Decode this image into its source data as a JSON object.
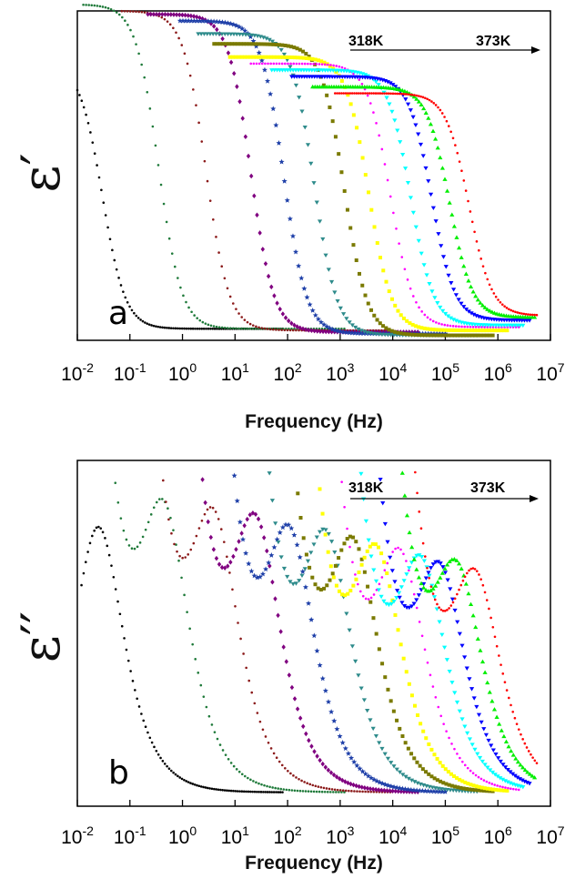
{
  "temperature_range": {
    "start": "318K",
    "end": "373K"
  },
  "series_colors": [
    "#000000",
    "#1f7a3a",
    "#8b1a1a",
    "#800080",
    "#1e3fa8",
    "#2e8b8b",
    "#7a7a00",
    "#ffff00",
    "#ff00ff",
    "#00ffff",
    "#0000ff",
    "#00ee00",
    "#ff0000"
  ],
  "chart_data": [
    {
      "type": "scatter",
      "panel_label": "a",
      "ylabel": "ε′",
      "xlabel": "Frequency (Hz)",
      "x_scale": "log",
      "xlim": [
        0.01,
        10000000
      ],
      "x_ticks": [
        0.01,
        0.1,
        1,
        10,
        100,
        1000,
        10000,
        100000,
        1000000,
        10000000
      ],
      "x_tick_bases": [
        "10",
        "10",
        "10",
        "10",
        "10",
        "10",
        "10",
        "10",
        "10",
        "10"
      ],
      "x_tick_exponents": [
        "-2",
        "-1",
        "0",
        "1",
        "2",
        "3",
        "4",
        "5",
        "6",
        "7"
      ],
      "y_ticks_shown": false,
      "ylim": [
        0,
        1
      ],
      "series": [
        {
          "color": "#000000",
          "marker": "dot",
          "fmin": 0.01,
          "fmax": 80,
          "fc": 0.03,
          "eps_s": 0.84,
          "eps_inf": 0.035
        },
        {
          "color": "#1f7a3a",
          "marker": "dot",
          "fmin": 0.013,
          "fmax": 1200,
          "fc": 0.35,
          "eps_s": 1.02,
          "eps_inf": 0.035
        },
        {
          "color": "#8b1a1a",
          "marker": "dot",
          "fmin": 0.07,
          "fmax": 9000,
          "fc": 2.8,
          "eps_s": 1.0,
          "eps_inf": 0.03
        },
        {
          "color": "#800080",
          "marker": "diamond",
          "fmin": 0.22,
          "fmax": 30000,
          "fc": 20,
          "eps_s": 0.99,
          "eps_inf": 0.025
        },
        {
          "color": "#1e3fa8",
          "marker": "star",
          "fmin": 0.9,
          "fmax": 100000,
          "fc": 85,
          "eps_s": 0.97,
          "eps_inf": 0.02
        },
        {
          "color": "#2e8b8b",
          "marker": "tri-down",
          "fmin": 2,
          "fmax": 400000,
          "fc": 320,
          "eps_s": 0.93,
          "eps_inf": 0.015
        },
        {
          "color": "#7a7a00",
          "marker": "square",
          "fmin": 4,
          "fmax": 800000,
          "fc": 1200,
          "eps_s": 0.9,
          "eps_inf": 0.015
        },
        {
          "color": "#ffff00",
          "marker": "square",
          "fmin": 8,
          "fmax": 1500000,
          "fc": 3500,
          "eps_s": 0.86,
          "eps_inf": 0.03
        },
        {
          "color": "#ff00ff",
          "marker": "dot",
          "fmin": 20,
          "fmax": 2500000,
          "fc": 9000,
          "eps_s": 0.84,
          "eps_inf": 0.04
        },
        {
          "color": "#00ffff",
          "marker": "tri-down",
          "fmin": 50,
          "fmax": 3000000,
          "fc": 22000,
          "eps_s": 0.82,
          "eps_inf": 0.045
        },
        {
          "color": "#0000ff",
          "marker": "tri-down",
          "fmin": 120,
          "fmax": 4000000,
          "fc": 55000,
          "eps_s": 0.8,
          "eps_inf": 0.06
        },
        {
          "color": "#00ee00",
          "marker": "tri-up",
          "fmin": 300,
          "fmax": 5000000,
          "fc": 120000,
          "eps_s": 0.77,
          "eps_inf": 0.07
        },
        {
          "color": "#ff0000",
          "marker": "dot",
          "fmin": 800,
          "fmax": 5500000,
          "fc": 280000,
          "eps_s": 0.75,
          "eps_inf": 0.075
        }
      ]
    },
    {
      "type": "scatter",
      "panel_label": "b",
      "ylabel": "ε′′",
      "xlabel": "Frequency (Hz)",
      "x_scale": "log",
      "xlim": [
        0.01,
        10000000
      ],
      "x_ticks": [
        0.01,
        0.1,
        1,
        10,
        100,
        1000,
        10000,
        100000,
        1000000,
        10000000
      ],
      "x_tick_bases": [
        "10",
        "10",
        "10",
        "10",
        "10",
        "10",
        "10",
        "10",
        "10",
        "10"
      ],
      "x_tick_exponents": [
        "-2",
        "-1",
        "0",
        "1",
        "2",
        "3",
        "4",
        "5",
        "6",
        "7"
      ],
      "y_ticks_shown": false,
      "ylim": [
        0,
        1
      ],
      "series": [
        {
          "color": "#000000",
          "marker": "dot",
          "fmin": 0.012,
          "fmax": 80,
          "fp": 0.025,
          "peak": 0.8,
          "low_amp": 0.0,
          "slope": 0
        },
        {
          "color": "#1f7a3a",
          "marker": "dot",
          "fmin": 0.014,
          "fmax": 1200,
          "fp": 0.45,
          "peak": 0.78,
          "low_amp": 1.0,
          "slope": 0.95
        },
        {
          "color": "#8b1a1a",
          "marker": "dot",
          "fmin": 0.1,
          "fmax": 9000,
          "fp": 4,
          "peak": 0.76,
          "low_amp": 0.95,
          "slope": 0.95
        },
        {
          "color": "#800080",
          "marker": "diamond",
          "fmin": 0.3,
          "fmax": 30000,
          "fp": 25,
          "peak": 0.75,
          "low_amp": 0.88,
          "slope": 0.95
        },
        {
          "color": "#1e3fa8",
          "marker": "star",
          "fmin": 0.8,
          "fmax": 100000,
          "fp": 110,
          "peak": 0.72,
          "low_amp": 0.84,
          "slope": 0.95
        },
        {
          "color": "#2e8b8b",
          "marker": "tri-down",
          "fmin": 2,
          "fmax": 400000,
          "fp": 550,
          "peak": 0.71,
          "low_amp": 0.8,
          "slope": 0.95
        },
        {
          "color": "#7a7a00",
          "marker": "square",
          "fmin": 5,
          "fmax": 800000,
          "fp": 1800,
          "peak": 0.69,
          "low_amp": 0.78,
          "slope": 0.95
        },
        {
          "color": "#ffff00",
          "marker": "square",
          "fmin": 15,
          "fmax": 1500000,
          "fp": 5000,
          "peak": 0.67,
          "low_amp": 0.76,
          "slope": 0.95
        },
        {
          "color": "#ff00ff",
          "marker": "dot",
          "fmin": 40,
          "fmax": 2500000,
          "fp": 14000,
          "peak": 0.66,
          "low_amp": 0.74,
          "slope": 0.95
        },
        {
          "color": "#00ffff",
          "marker": "tri-down",
          "fmin": 90,
          "fmax": 3000000,
          "fp": 35000,
          "peak": 0.64,
          "low_amp": 0.72,
          "slope": 0.95
        },
        {
          "color": "#0000ff",
          "marker": "tri-down",
          "fmin": 200,
          "fmax": 4000000,
          "fp": 80000,
          "peak": 0.62,
          "low_amp": 0.72,
          "slope": 0.95
        },
        {
          "color": "#00ee00",
          "marker": "tri-up",
          "fmin": 300,
          "fmax": 5000000,
          "fp": 170000,
          "peak": 0.61,
          "low_amp": 0.88,
          "slope": 0.95
        },
        {
          "color": "#ff0000",
          "marker": "dot",
          "fmin": 1500,
          "fmax": 5500000,
          "fp": 380000,
          "peak": 0.6,
          "low_amp": 0.72,
          "slope": 0.95
        }
      ]
    }
  ]
}
